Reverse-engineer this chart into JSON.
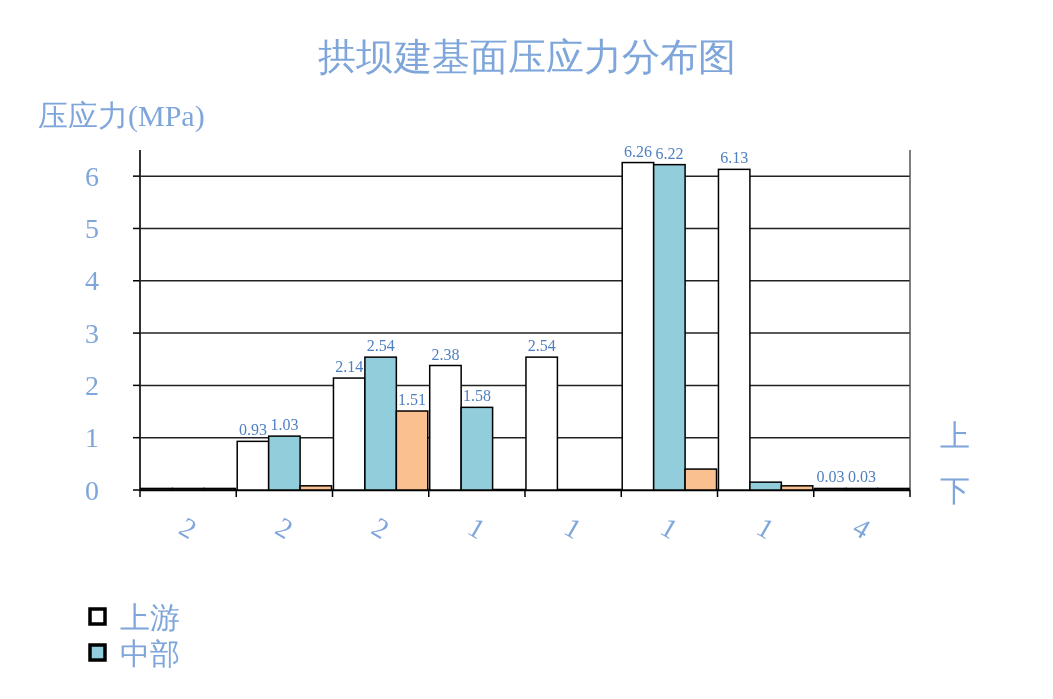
{
  "chart_data": {
    "type": "bar",
    "title": "拱坝建基面压应力分布图",
    "ylabel": "压应力(MPa)",
    "categories": [
      "2",
      "2",
      "2",
      "1",
      "1",
      "1",
      "1",
      "4"
    ],
    "series": [
      {
        "name": "上游",
        "color": "#ffffff",
        "values": [
          0.03,
          0.93,
          2.14,
          2.38,
          2.54,
          6.26,
          6.13,
          0.03
        ],
        "value_labels": [
          null,
          "0.93",
          "2.14",
          "2.38",
          "2.54",
          "6.26",
          "6.13",
          "0.03"
        ]
      },
      {
        "name": "中部",
        "color": "#92cddc",
        "values": [
          0.03,
          1.03,
          2.54,
          1.58,
          null,
          6.22,
          0.15,
          0.03
        ],
        "value_labels": [
          null,
          "1.03",
          "2.54",
          "1.58",
          null,
          "6.22",
          null,
          "0.03"
        ]
      },
      {
        "color": "#fac090",
        "values": [
          0.03,
          0.08,
          1.51,
          null,
          null,
          0.4,
          0.08,
          0.03
        ],
        "value_labels": [
          null,
          null,
          "1.51",
          null,
          null,
          null,
          null,
          null
        ]
      }
    ],
    "ylim": [
      0,
      6.5
    ],
    "yticks": [
      0,
      1,
      2,
      3,
      4,
      5,
      6
    ],
    "grid": "y",
    "legend": "bottom left",
    "annotations": [
      "上",
      "下"
    ]
  }
}
